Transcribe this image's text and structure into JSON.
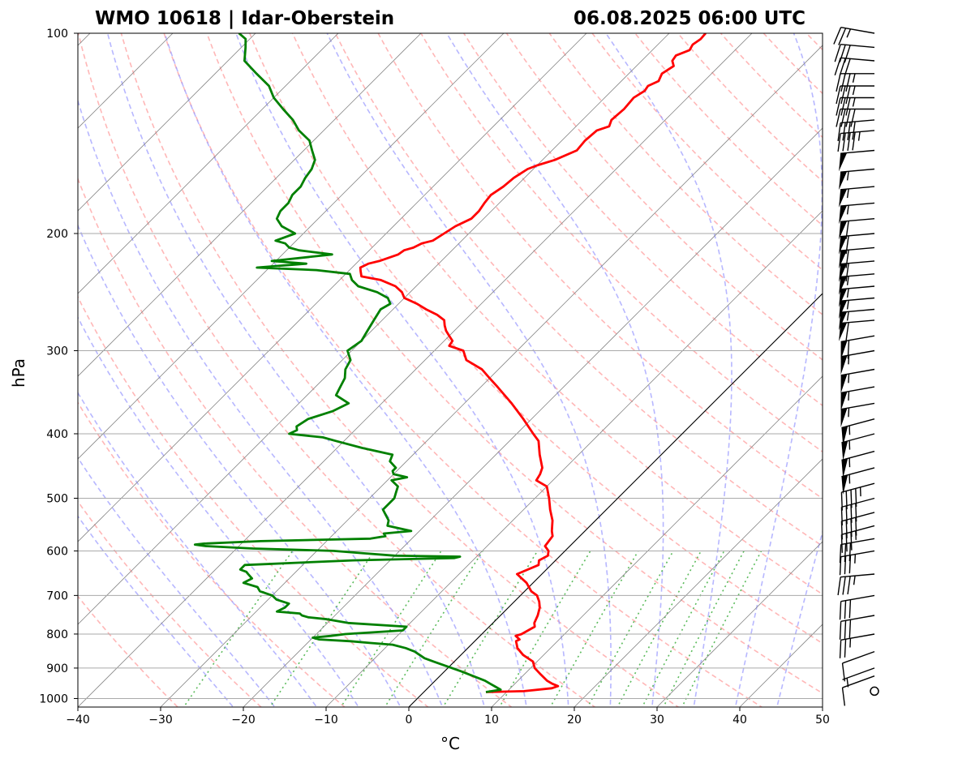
{
  "title_left": "WMO 10618 | Idar-Oberstein",
  "title_right": "06.08.2025 06:00 UTC",
  "colors": {
    "temperature": "#ff0000",
    "dewpoint": "#008000",
    "dry_adiabat": "#ff9999",
    "moist_adiabat": "#9999ff",
    "mixing_ratio": "#33aa33",
    "isotherm": "#888888",
    "isobar": "#aaaaaa",
    "parcel_line": "#000000",
    "wind_barb": "#000000"
  },
  "chart_data": {
    "type": "line",
    "chart_kind": "skew-T log-p sounding",
    "xlabel": "°C",
    "ylabel": "hPa",
    "xlim": [
      -40,
      50
    ],
    "ylim": [
      1030,
      100
    ],
    "y_scale": "log",
    "x_ticks": [
      -40,
      -30,
      -20,
      -10,
      0,
      10,
      20,
      30,
      40,
      50
    ],
    "x_tick_labels": [
      "−40",
      "−30",
      "−20",
      "−10",
      "0",
      "10",
      "20",
      "30",
      "40",
      "50"
    ],
    "y_ticks": [
      1000,
      900,
      800,
      700,
      600,
      500,
      400,
      300,
      200,
      100
    ],
    "y_tick_labels": [
      "1000",
      "900",
      "800",
      "700",
      "600",
      "500",
      "400",
      "300",
      "200",
      "100"
    ],
    "grid": true,
    "series": [
      {
        "key": "temperature",
        "pressure": [
          978,
          975,
          965,
          958,
          950,
          940,
          920,
          900,
          880,
          860,
          840,
          820,
          815,
          805,
          800,
          780,
          770,
          750,
          730,
          715,
          700,
          690,
          670,
          650,
          630,
          620,
          610,
          600,
          590,
          570,
          560,
          540,
          520,
          500,
          480,
          470,
          460,
          450,
          430,
          410,
          400,
          380,
          360,
          340,
          330,
          320,
          310,
          300,
          295,
          290,
          285,
          280,
          275,
          270,
          265,
          260,
          255,
          250,
          245,
          240,
          235,
          232,
          228,
          225,
          222,
          220,
          215,
          212,
          210,
          207,
          205,
          200,
          195,
          190,
          185,
          180,
          175,
          170,
          165,
          160,
          158,
          155,
          150,
          145,
          140,
          138,
          135,
          130,
          125,
          122,
          120,
          118,
          115,
          112,
          110,
          108,
          106,
          104,
          102,
          100
        ],
        "values": [
          7.5,
          12.0,
          15.0,
          15.5,
          14.5,
          13.5,
          12.0,
          10.5,
          9.5,
          7.5,
          6.0,
          5.0,
          5.2,
          4.3,
          4.8,
          5.5,
          5.0,
          4.5,
          3.8,
          3.0,
          2.0,
          0.8,
          -0.8,
          -3.0,
          -1.5,
          -2.0,
          -1.5,
          -2.0,
          -3.0,
          -3.3,
          -4.0,
          -5.2,
          -6.8,
          -8.3,
          -10.0,
          -12.0,
          -12.3,
          -12.8,
          -14.7,
          -16.5,
          -18.0,
          -21.0,
          -24.3,
          -28.0,
          -30.0,
          -32.0,
          -35.0,
          -36.5,
          -38.8,
          -39.0,
          -40.0,
          -41.0,
          -41.8,
          -42.5,
          -44.0,
          -46.0,
          -47.8,
          -50.0,
          -51.0,
          -52.5,
          -55.0,
          -57.8,
          -58.5,
          -59.0,
          -58.5,
          -57.5,
          -56.0,
          -55.8,
          -55.0,
          -54.5,
          -53.5,
          -53.0,
          -52.5,
          -51.5,
          -51.5,
          -51.8,
          -52.0,
          -51.5,
          -51.3,
          -50.7,
          -50.0,
          -48.5,
          -47.0,
          -47.2,
          -47.0,
          -46.0,
          -46.5,
          -46.3,
          -46.5,
          -46.0,
          -46.2,
          -45.5,
          -46.0,
          -45.5,
          -46.3,
          -46.5,
          -45.5,
          -45.8,
          -45.5,
          -45.6
        ]
      },
      {
        "key": "dewpoint",
        "pressure": [
          978,
          970,
          960,
          950,
          940,
          925,
          910,
          900,
          890,
          880,
          870,
          860,
          850,
          840,
          830,
          825,
          820,
          815,
          810,
          805,
          800,
          790,
          780,
          770,
          760,
          755,
          750,
          745,
          740,
          730,
          720,
          710,
          700,
          690,
          680,
          670,
          660,
          650,
          645,
          640,
          630,
          620,
          615,
          612,
          610,
          605,
          600,
          595,
          590,
          587,
          585,
          580,
          575,
          570,
          565,
          560,
          550,
          540,
          530,
          520,
          510,
          500,
          490,
          480,
          470,
          465,
          460,
          455,
          450,
          440,
          430,
          420,
          410,
          405,
          400,
          395,
          390,
          380,
          370,
          360,
          350,
          340,
          330,
          320,
          310,
          300,
          290,
          280,
          270,
          260,
          255,
          250,
          245,
          240,
          235,
          230,
          227,
          225,
          222,
          220,
          215,
          212,
          210,
          207,
          205,
          200,
          195,
          190,
          185,
          180,
          175,
          170,
          165,
          160,
          155,
          150,
          145,
          140,
          135,
          130,
          125,
          120,
          115,
          110,
          105,
          102,
          100
        ],
        "values": [
          7.5,
          9.0,
          8.0,
          7.0,
          6.0,
          4.0,
          2.0,
          0.5,
          -1.0,
          -2.5,
          -4.0,
          -5.0,
          -6.0,
          -7.5,
          -9.5,
          -12.5,
          -15.0,
          -19.0,
          -20.0,
          -18.0,
          -16.5,
          -10.0,
          -10.0,
          -17.5,
          -20.5,
          -23.0,
          -24.0,
          -24.5,
          -27.5,
          -27.0,
          -27.0,
          -29.0,
          -30.0,
          -32.0,
          -32.8,
          -35.0,
          -34.5,
          -35.5,
          -36.0,
          -37.0,
          -37.0,
          -24.5,
          -12.5,
          -12.0,
          -20.0,
          -24.0,
          -28.0,
          -38.0,
          -44.0,
          -45.5,
          -44.5,
          -38.0,
          -25.0,
          -23.5,
          -24.0,
          -21.0,
          -24.5,
          -25.0,
          -26.0,
          -27.0,
          -27.0,
          -27.0,
          -27.5,
          -28.0,
          -29.5,
          -28.0,
          -30.0,
          -30.5,
          -30.5,
          -32.0,
          -32.5,
          -37.0,
          -41.0,
          -43.0,
          -47.5,
          -47.0,
          -47.5,
          -47.0,
          -45.0,
          -44.0,
          -46.5,
          -47.0,
          -47.5,
          -48.5,
          -49.0,
          -50.5,
          -50.0,
          -50.5,
          -51.0,
          -51.5,
          -51.0,
          -52.0,
          -54.0,
          -57.0,
          -58.5,
          -59.5,
          -64.0,
          -71.5,
          -66.0,
          -70.5,
          -64.0,
          -68.5,
          -70.0,
          -71.0,
          -72.5,
          -71.0,
          -73.5,
          -75.0,
          -75.5,
          -75.5,
          -76.0,
          -76.0,
          -76.5,
          -76.8,
          -77.5,
          -79.0,
          -80.5,
          -83.0,
          -85.0,
          -87.5,
          -90.0,
          -92.0,
          -95.0,
          -98.0,
          -99.5,
          -100.5,
          -102.0
        ]
      }
    ],
    "parcel_line": {
      "pressure": [
        1030,
        100
      ],
      "values": [
        0,
        0
      ]
    },
    "wind_profile": {
      "units": "kt",
      "pressure": [
        975,
        925,
        900,
        850,
        800,
        750,
        700,
        650,
        600,
        575,
        550,
        525,
        500,
        475,
        450,
        425,
        400,
        380,
        360,
        340,
        320,
        300,
        285,
        270,
        260,
        250,
        240,
        230,
        220,
        210,
        200,
        190,
        180,
        170,
        160,
        150,
        140,
        135,
        130,
        125,
        120,
        115,
        110,
        105,
        100
      ],
      "direction": [
        0,
        250,
        250,
        250,
        260,
        260,
        260,
        265,
        260,
        260,
        255,
        255,
        255,
        255,
        255,
        255,
        255,
        255,
        260,
        260,
        260,
        260,
        260,
        265,
        265,
        265,
        265,
        265,
        265,
        265,
        265,
        265,
        265,
        265,
        265,
        265,
        265,
        265,
        270,
        270,
        270,
        270,
        275,
        275,
        280
      ],
      "speed": [
        0,
        10,
        5,
        10,
        25,
        30,
        30,
        35,
        35,
        30,
        35,
        40,
        40,
        45,
        55,
        55,
        55,
        55,
        55,
        55,
        55,
        55,
        60,
        60,
        55,
        55,
        55,
        55,
        60,
        60,
        60,
        60,
        55,
        55,
        55,
        50,
        45,
        40,
        40,
        35,
        35,
        35,
        30,
        30,
        25
      ]
    }
  }
}
